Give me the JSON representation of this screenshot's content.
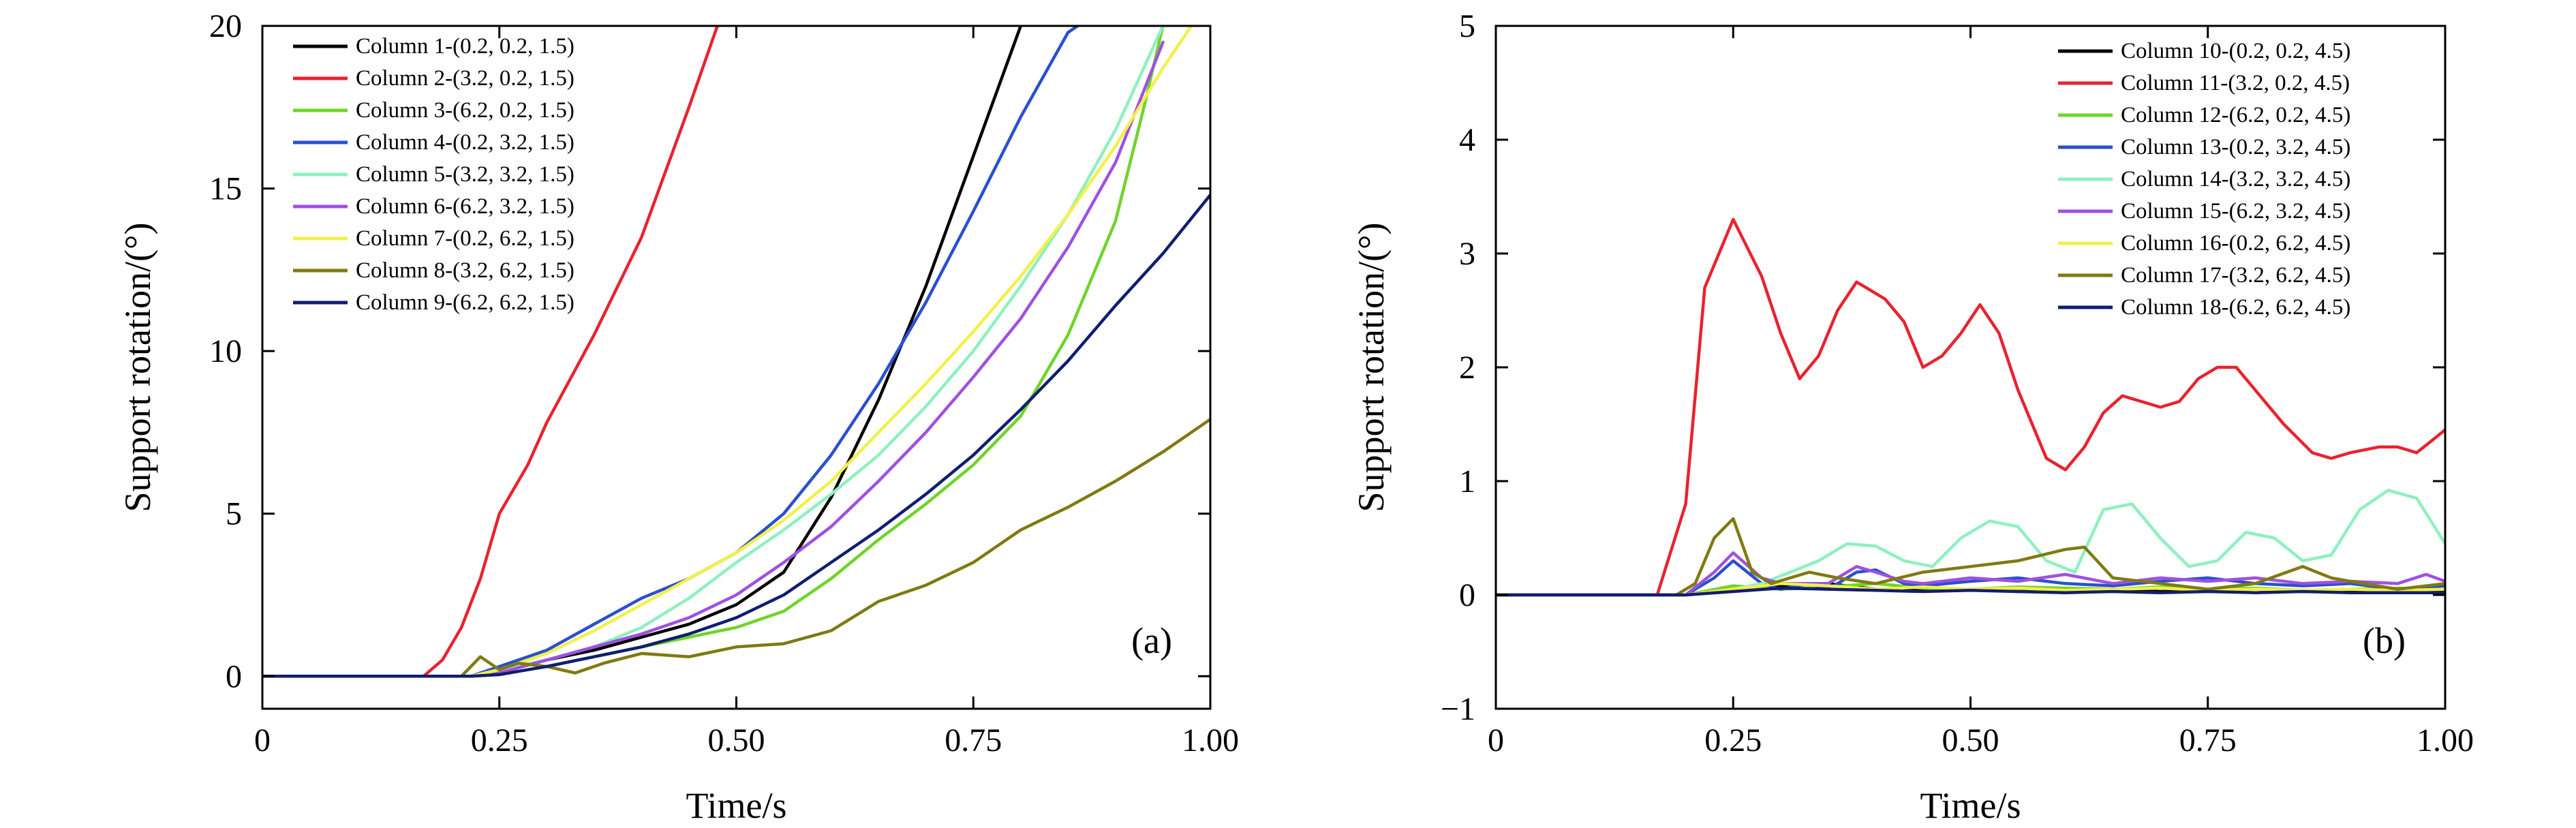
{
  "chart_data": [
    {
      "type": "line",
      "panel_label": "(a)",
      "xlabel": "Time/s",
      "ylabel": "Support rotation/(°)",
      "xlim": [
        0,
        1.0
      ],
      "ylim": [
        -1,
        20
      ],
      "xticks": [
        0,
        0.25,
        0.5,
        0.75,
        1.0
      ],
      "xtick_labels": [
        "0",
        "0.25",
        "0.50",
        "0.75",
        "1.00"
      ],
      "yticks": [
        0,
        5,
        10,
        15,
        20
      ],
      "ytick_labels": [
        "0",
        "5",
        "10",
        "15",
        "20"
      ],
      "legend_position": "top-left",
      "series": [
        {
          "name": "Column 1-(0.2, 0.2, 1.5)",
          "color": "#000000",
          "x": [
            0,
            0.22,
            0.25,
            0.3,
            0.35,
            0.4,
            0.45,
            0.5,
            0.55,
            0.6,
            0.65,
            0.7,
            0.75,
            0.8
          ],
          "y": [
            0,
            0,
            0.1,
            0.5,
            0.8,
            1.2,
            1.6,
            2.2,
            3.2,
            5.5,
            8.5,
            12.0,
            16.0,
            20.0
          ]
        },
        {
          "name": "Column 2-(3.2, 0.2, 1.5)",
          "color": "#e8232e",
          "x": [
            0,
            0.17,
            0.19,
            0.21,
            0.23,
            0.25,
            0.28,
            0.3,
            0.35,
            0.4,
            0.45,
            0.48
          ],
          "y": [
            0,
            0,
            0.5,
            1.5,
            3.0,
            5.0,
            6.5,
            7.8,
            10.5,
            13.5,
            17.5,
            20.0
          ]
        },
        {
          "name": "Column 3-(6.2, 0.2, 1.5)",
          "color": "#6fd42a",
          "x": [
            0,
            0.22,
            0.25,
            0.3,
            0.35,
            0.4,
            0.45,
            0.5,
            0.55,
            0.6,
            0.65,
            0.7,
            0.75,
            0.8,
            0.85,
            0.9,
            0.93,
            0.95
          ],
          "y": [
            0,
            0,
            0.05,
            0.3,
            0.6,
            0.9,
            1.2,
            1.5,
            2.0,
            3.0,
            4.2,
            5.3,
            6.5,
            8.0,
            10.5,
            14.0,
            17.5,
            20.0
          ]
        },
        {
          "name": "Column 4-(0.2, 3.2, 1.5)",
          "color": "#2a4fd0",
          "x": [
            0,
            0.22,
            0.25,
            0.3,
            0.35,
            0.4,
            0.45,
            0.5,
            0.55,
            0.6,
            0.65,
            0.7,
            0.75,
            0.8,
            0.85,
            0.86
          ],
          "y": [
            0,
            0,
            0.3,
            0.8,
            1.6,
            2.4,
            3.0,
            3.8,
            5.0,
            6.8,
            9.0,
            11.5,
            14.3,
            17.2,
            19.8,
            20.0
          ]
        },
        {
          "name": "Column 5-(3.2, 3.2, 1.5)",
          "color": "#8ef0c0",
          "x": [
            0,
            0.22,
            0.25,
            0.3,
            0.35,
            0.4,
            0.45,
            0.5,
            0.55,
            0.6,
            0.65,
            0.7,
            0.75,
            0.8,
            0.85,
            0.9,
            0.95
          ],
          "y": [
            0,
            0,
            0.2,
            0.5,
            0.9,
            1.5,
            2.4,
            3.5,
            4.5,
            5.6,
            6.8,
            8.3,
            10.0,
            12.0,
            14.2,
            16.8,
            20.0
          ]
        },
        {
          "name": "Column 6-(6.2, 3.2, 1.5)",
          "color": "#a050e0",
          "x": [
            0,
            0.22,
            0.25,
            0.3,
            0.35,
            0.4,
            0.45,
            0.5,
            0.55,
            0.6,
            0.65,
            0.7,
            0.75,
            0.8,
            0.85,
            0.9,
            0.95
          ],
          "y": [
            0,
            0,
            0.1,
            0.5,
            0.9,
            1.3,
            1.8,
            2.5,
            3.5,
            4.6,
            6.0,
            7.5,
            9.2,
            11.0,
            13.2,
            15.8,
            19.5
          ]
        },
        {
          "name": "Column 7-(0.2, 6.2, 1.5)",
          "color": "#f2f04a",
          "x": [
            0,
            0.22,
            0.25,
            0.3,
            0.35,
            0.4,
            0.45,
            0.5,
            0.55,
            0.6,
            0.65,
            0.7,
            0.75,
            0.8,
            0.85,
            0.9,
            0.95,
            0.98
          ],
          "y": [
            0,
            0,
            0.2,
            0.7,
            1.4,
            2.2,
            3.0,
            3.8,
            4.8,
            6.0,
            7.5,
            9.0,
            10.6,
            12.3,
            14.2,
            16.3,
            18.7,
            20.0
          ]
        },
        {
          "name": "Column 8-(3.2, 6.2, 1.5)",
          "color": "#807a10",
          "x": [
            0,
            0.21,
            0.23,
            0.25,
            0.27,
            0.3,
            0.33,
            0.36,
            0.4,
            0.45,
            0.5,
            0.55,
            0.6,
            0.65,
            0.7,
            0.75,
            0.8,
            0.85,
            0.9,
            0.95,
            1.0
          ],
          "y": [
            0,
            0,
            0.6,
            0.2,
            0.4,
            0.3,
            0.1,
            0.4,
            0.7,
            0.6,
            0.9,
            1.0,
            1.4,
            2.3,
            2.8,
            3.5,
            4.5,
            5.2,
            6.0,
            6.9,
            7.9
          ]
        },
        {
          "name": "Column 9-(6.2, 6.2, 1.5)",
          "color": "#101e70",
          "x": [
            0,
            0.22,
            0.25,
            0.3,
            0.35,
            0.4,
            0.45,
            0.5,
            0.55,
            0.6,
            0.65,
            0.7,
            0.75,
            0.8,
            0.85,
            0.9,
            0.95,
            1.0
          ],
          "y": [
            0,
            0,
            0.05,
            0.3,
            0.6,
            0.9,
            1.3,
            1.8,
            2.5,
            3.5,
            4.5,
            5.6,
            6.8,
            8.2,
            9.7,
            11.4,
            13.0,
            14.8
          ]
        }
      ]
    },
    {
      "type": "line",
      "panel_label": "(b)",
      "xlabel": "Time/s",
      "ylabel": "Support rotation/(°)",
      "xlim": [
        0,
        1.0
      ],
      "ylim": [
        -1,
        5
      ],
      "xticks": [
        0,
        0.25,
        0.5,
        0.75,
        1.0
      ],
      "xtick_labels": [
        "0",
        "0.25",
        "0.50",
        "0.75",
        "1.00"
      ],
      "yticks": [
        -1,
        0,
        1,
        2,
        3,
        4,
        5
      ],
      "ytick_labels": [
        "−1",
        "0",
        "1",
        "2",
        "3",
        "4",
        "5"
      ],
      "legend_position": "top-right",
      "series": [
        {
          "name": "Column 10-(0.2, 0.2, 4.5)",
          "color": "#000000",
          "x": [
            0,
            0.2,
            0.25,
            0.3,
            0.35,
            0.4,
            0.45,
            0.5,
            0.55,
            0.6,
            0.65,
            0.7,
            0.75,
            0.8,
            0.85,
            0.9,
            0.95,
            1.0
          ],
          "y": [
            0,
            0,
            0.05,
            0.08,
            0.1,
            0.05,
            0.04,
            0.05,
            0.03,
            0.04,
            0.05,
            0.03,
            0.04,
            0.05,
            0.03,
            0.04,
            0.05,
            0.04
          ]
        },
        {
          "name": "Column 11-(3.2, 0.2, 4.5)",
          "color": "#e8232e",
          "x": [
            0,
            0.17,
            0.2,
            0.22,
            0.25,
            0.28,
            0.3,
            0.32,
            0.34,
            0.36,
            0.38,
            0.39,
            0.41,
            0.43,
            0.45,
            0.47,
            0.49,
            0.51,
            0.53,
            0.55,
            0.58,
            0.6,
            0.62,
            0.64,
            0.66,
            0.68,
            0.7,
            0.72,
            0.74,
            0.76,
            0.78,
            0.8,
            0.83,
            0.86,
            0.88,
            0.9,
            0.93,
            0.95,
            0.97,
            1.0
          ],
          "y": [
            0,
            0,
            0.8,
            2.7,
            3.3,
            2.8,
            2.3,
            1.9,
            2.1,
            2.5,
            2.75,
            2.7,
            2.6,
            2.4,
            2.0,
            2.1,
            2.3,
            2.55,
            2.3,
            1.8,
            1.2,
            1.1,
            1.3,
            1.6,
            1.75,
            1.7,
            1.65,
            1.7,
            1.9,
            2.0,
            2.0,
            1.8,
            1.5,
            1.25,
            1.2,
            1.25,
            1.3,
            1.3,
            1.25,
            1.45
          ]
        },
        {
          "name": "Column 12-(6.2, 0.2, 4.5)",
          "color": "#6fd42a",
          "x": [
            0,
            0.2,
            0.25,
            0.3,
            0.35,
            0.4,
            0.45,
            0.5,
            0.55,
            0.6,
            0.65,
            0.7,
            0.75,
            0.8,
            0.85,
            0.9,
            0.95,
            1.0
          ],
          "y": [
            0,
            0,
            0.08,
            0.05,
            0.07,
            0.1,
            0.06,
            0.05,
            0.07,
            0.06,
            0.05,
            0.07,
            0.05,
            0.06,
            0.04,
            0.05,
            0.06,
            0.05
          ]
        },
        {
          "name": "Column 13-(0.2, 3.2, 4.5)",
          "color": "#2a4fd0",
          "x": [
            0,
            0.2,
            0.23,
            0.25,
            0.28,
            0.3,
            0.33,
            0.35,
            0.38,
            0.4,
            0.43,
            0.45,
            0.5,
            0.55,
            0.6,
            0.65,
            0.7,
            0.75,
            0.8,
            0.85,
            0.9,
            0.95,
            1.0
          ],
          "y": [
            0,
            0,
            0.15,
            0.3,
            0.1,
            0.05,
            0.1,
            0.05,
            0.2,
            0.22,
            0.1,
            0.08,
            0.12,
            0.15,
            0.1,
            0.08,
            0.12,
            0.15,
            0.1,
            0.08,
            0.1,
            0.05,
            0.08
          ]
        },
        {
          "name": "Column 14-(3.2, 3.2, 4.5)",
          "color": "#8ef0c0",
          "x": [
            0,
            0.2,
            0.25,
            0.28,
            0.31,
            0.34,
            0.37,
            0.4,
            0.43,
            0.46,
            0.49,
            0.52,
            0.55,
            0.58,
            0.61,
            0.64,
            0.67,
            0.7,
            0.73,
            0.76,
            0.79,
            0.82,
            0.85,
            0.88,
            0.91,
            0.94,
            0.97,
            1.0
          ],
          "y": [
            0,
            0,
            0.05,
            0.1,
            0.2,
            0.3,
            0.45,
            0.43,
            0.3,
            0.25,
            0.5,
            0.65,
            0.6,
            0.3,
            0.2,
            0.75,
            0.8,
            0.5,
            0.25,
            0.3,
            0.55,
            0.5,
            0.3,
            0.35,
            0.75,
            0.92,
            0.85,
            0.45
          ]
        },
        {
          "name": "Column 15-(6.2, 3.2, 4.5)",
          "color": "#a050e0",
          "x": [
            0,
            0.2,
            0.23,
            0.25,
            0.28,
            0.3,
            0.35,
            0.38,
            0.4,
            0.43,
            0.45,
            0.5,
            0.55,
            0.6,
            0.65,
            0.7,
            0.75,
            0.8,
            0.85,
            0.9,
            0.95,
            0.98,
            1.0
          ],
          "y": [
            0,
            0,
            0.2,
            0.37,
            0.15,
            0.1,
            0.1,
            0.25,
            0.2,
            0.12,
            0.1,
            0.15,
            0.12,
            0.18,
            0.1,
            0.15,
            0.12,
            0.15,
            0.1,
            0.12,
            0.1,
            0.18,
            0.12
          ]
        },
        {
          "name": "Column 16-(0.2, 6.2, 4.5)",
          "color": "#f2f04a",
          "x": [
            0,
            0.2,
            0.25,
            0.3,
            0.35,
            0.4,
            0.45,
            0.5,
            0.55,
            0.6,
            0.65,
            0.7,
            0.75,
            0.8,
            0.85,
            0.9,
            0.95,
            1.0
          ],
          "y": [
            0,
            0,
            0.05,
            0.1,
            0.08,
            0.05,
            0.07,
            0.05,
            0.06,
            0.04,
            0.05,
            0.06,
            0.04,
            0.05,
            0.04,
            0.05,
            0.04,
            0.05
          ]
        },
        {
          "name": "Column 17-(3.2, 6.2, 4.5)",
          "color": "#807a10",
          "x": [
            0,
            0.19,
            0.21,
            0.23,
            0.25,
            0.27,
            0.29,
            0.31,
            0.33,
            0.36,
            0.4,
            0.45,
            0.5,
            0.55,
            0.6,
            0.62,
            0.65,
            0.7,
            0.75,
            0.8,
            0.85,
            0.88,
            0.9,
            0.95,
            1.0
          ],
          "y": [
            0,
            0,
            0.1,
            0.5,
            0.67,
            0.2,
            0.1,
            0.15,
            0.2,
            0.15,
            0.1,
            0.2,
            0.25,
            0.3,
            0.4,
            0.42,
            0.15,
            0.1,
            0.05,
            0.1,
            0.25,
            0.15,
            0.12,
            0.05,
            0.1
          ]
        },
        {
          "name": "Column 18-(6.2, 6.2, 4.5)",
          "color": "#101e70",
          "x": [
            0,
            0.2,
            0.25,
            0.3,
            0.35,
            0.4,
            0.45,
            0.5,
            0.55,
            0.6,
            0.65,
            0.7,
            0.75,
            0.8,
            0.85,
            0.9,
            0.95,
            1.0
          ],
          "y": [
            0,
            0,
            0.03,
            0.06,
            0.05,
            0.04,
            0.03,
            0.04,
            0.03,
            0.02,
            0.03,
            0.02,
            0.03,
            0.02,
            0.03,
            0.02,
            0.02,
            0.02
          ]
        }
      ]
    }
  ]
}
